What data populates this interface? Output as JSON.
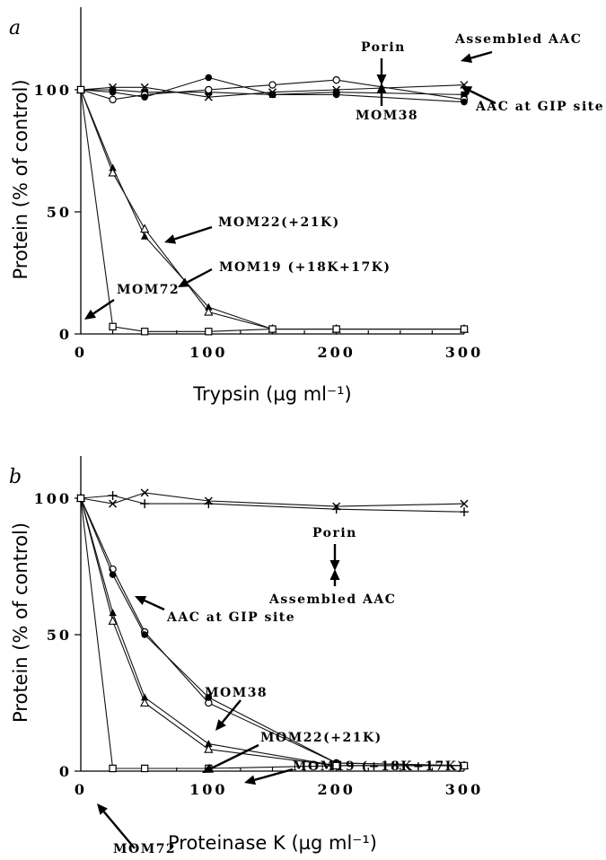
{
  "chart_data": [
    {
      "type": "line",
      "panel_label": "a",
      "xlabel": "Trypsin (µg ml⁻¹)",
      "ylabel": "Protein (% of control)",
      "xlim": [
        0,
        300
      ],
      "ylim": [
        0,
        120
      ],
      "xticks": [
        "0",
        "100",
        "200",
        "300"
      ],
      "yticks": [
        "0",
        "50",
        "100"
      ],
      "grid": false,
      "series": [
        {
          "name": "Porin",
          "marker": "filled-square",
          "x": [
            0,
            25,
            50,
            100,
            150,
            200,
            300
          ],
          "y": [
            100,
            100,
            99,
            99,
            98,
            99,
            98
          ]
        },
        {
          "name": "Assembled AAC",
          "marker": "cross",
          "x": [
            0,
            25,
            50,
            100,
            150,
            200,
            300
          ],
          "y": [
            100,
            101,
            101,
            97,
            99,
            100,
            102
          ]
        },
        {
          "name": "AAC at GIP site",
          "marker": "open-circle",
          "x": [
            0,
            25,
            50,
            100,
            150,
            200,
            300
          ],
          "y": [
            100,
            96,
            98,
            100,
            102,
            104,
            96
          ]
        },
        {
          "name": "MOM38",
          "marker": "filled-circle",
          "x": [
            0,
            25,
            50,
            100,
            150,
            200,
            300
          ],
          "y": [
            100,
            99,
            97,
            105,
            98,
            98,
            95
          ]
        },
        {
          "name": "MOM22(+21K)",
          "marker": "filled-triangle",
          "x": [
            0,
            25,
            50,
            100,
            150,
            200,
            300
          ],
          "y": [
            100,
            68,
            40,
            11,
            2,
            2,
            2
          ]
        },
        {
          "name": "MOM19 (+18K+17K)",
          "marker": "open-triangle",
          "x": [
            0,
            25,
            50,
            100,
            150,
            200,
            300
          ],
          "y": [
            100,
            66,
            43,
            9,
            2,
            2,
            2
          ]
        },
        {
          "name": "MOM72",
          "marker": "open-square",
          "x": [
            0,
            25,
            50,
            100,
            150,
            200,
            300
          ],
          "y": [
            100,
            3,
            1,
            1,
            2,
            2,
            2
          ]
        }
      ],
      "annotations": [
        "Porin",
        "Assembled AAC",
        "AAC at GIP site",
        "MOM38",
        "MOM22(+21K)",
        "MOM19 (+18K+17K)",
        "MOM72"
      ]
    },
    {
      "type": "line",
      "panel_label": "b",
      "xlabel": "Proteinase K (µg ml⁻¹)",
      "ylabel": "Protein (% of control)",
      "xlim": [
        0,
        300
      ],
      "ylim": [
        0,
        120
      ],
      "xticks": [
        "0",
        "100",
        "200",
        "300"
      ],
      "yticks": [
        "0",
        "50",
        "100"
      ],
      "grid": false,
      "series": [
        {
          "name": "Porin",
          "marker": "cross",
          "x": [
            0,
            25,
            50,
            100,
            200,
            300
          ],
          "y": [
            100,
            98,
            102,
            99,
            97,
            98
          ]
        },
        {
          "name": "Assembled AAC",
          "marker": "plus",
          "x": [
            0,
            25,
            50,
            100,
            200,
            300
          ],
          "y": [
            100,
            101,
            98,
            98,
            96,
            95
          ]
        },
        {
          "name": "AAC at GIP site",
          "marker": "open-circle",
          "x": [
            0,
            25,
            50,
            100,
            200,
            300
          ],
          "y": [
            100,
            74,
            51,
            25,
            3,
            2
          ]
        },
        {
          "name": "MOM38",
          "marker": "filled-circle",
          "x": [
            0,
            25,
            50,
            100,
            200,
            300
          ],
          "y": [
            100,
            72,
            50,
            27,
            3,
            2
          ]
        },
        {
          "name": "MOM22(+21K)",
          "marker": "filled-triangle",
          "x": [
            0,
            25,
            50,
            100,
            200,
            300
          ],
          "y": [
            100,
            58,
            27,
            10,
            2,
            2
          ]
        },
        {
          "name": "MOM19 (+18K+17K)",
          "marker": "open-triangle",
          "x": [
            0,
            25,
            50,
            100,
            200,
            300
          ],
          "y": [
            100,
            55,
            25,
            8,
            2,
            2
          ]
        },
        {
          "name": "MOM72",
          "marker": "open-square",
          "x": [
            0,
            25,
            50,
            100,
            200,
            300
          ],
          "y": [
            100,
            1,
            1,
            1,
            2,
            2
          ]
        }
      ],
      "annotations": [
        "Porin",
        "Assembled AAC",
        "AAC at GIP site",
        "MOM38",
        "MOM22(+21K)",
        "MOM19 (+18K+17K)",
        "MOM72"
      ]
    }
  ]
}
